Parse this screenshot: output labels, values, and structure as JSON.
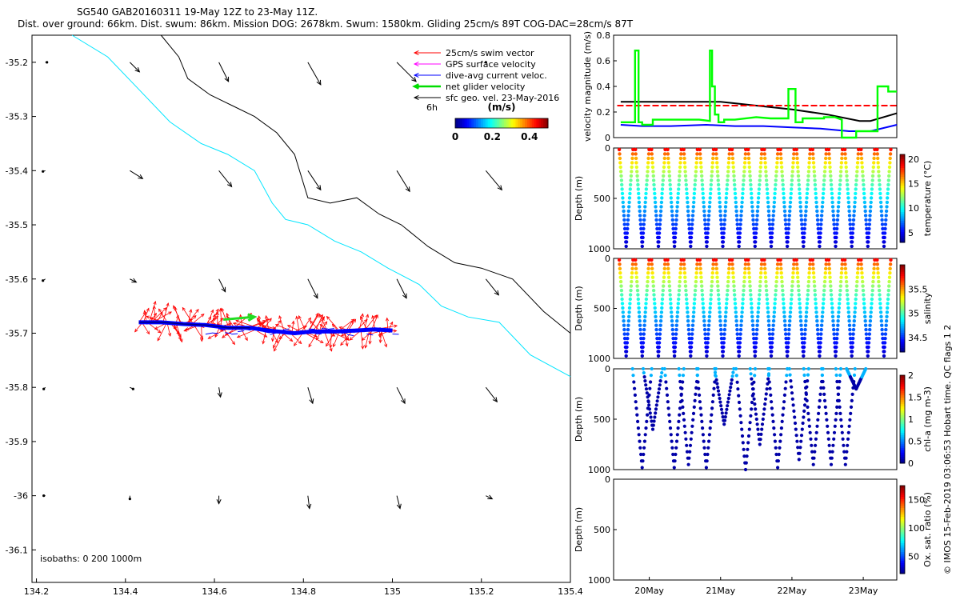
{
  "header": {
    "line1": "SG540 GAB20160311 19-May 12Z to 23-May 11Z.",
    "line2": "Dist. over ground: 66km. Dist. swum: 86km. Mission DOG: 2678km. Swum: 1580km. Gliding 25cm/s 89T COG-DAC=28cm/s 87T"
  },
  "credit": "© IMOS 15-Feb-2019 03:06:53 Hobart time. QC flags 1  2",
  "chart_data": [
    {
      "type": "map",
      "x_ticks": [
        "134.2",
        "134.4",
        "134.6",
        "134.8",
        "135",
        "135.2",
        "135.4"
      ],
      "y_ticks": [
        "-35.2",
        "-35.3",
        "-35.4",
        "-35.5",
        "-35.6",
        "-35.7",
        "-35.8",
        "-35.9",
        "-36",
        "-36.1"
      ],
      "xlim": [
        134.19,
        135.4
      ],
      "ylim": [
        -36.16,
        -35.15
      ],
      "legend": [
        {
          "label": "25cm/s swim vector",
          "color": "#ff0000"
        },
        {
          "label": "GPS surface velocity",
          "color": "#ff00ff"
        },
        {
          "label": "dive-avg current veloc.",
          "color": "#0000ff"
        },
        {
          "label": "net glider velocity",
          "color": "#00dd00"
        },
        {
          "label": "sfc geo. vel. 23-May-2016",
          "color": "#000000"
        }
      ],
      "legend_position": "top-right",
      "scale_label": "6h",
      "colorbar": {
        "title": "(m/s)",
        "ticks": [
          "0",
          "0.2",
          "0.4"
        ],
        "range": [
          0,
          0.5
        ]
      },
      "isobaths_label": "isobaths: 0   200  1000m",
      "isobath_200": [
        [
          134.28,
          -35.15
        ],
        [
          134.36,
          -35.19
        ],
        [
          134.43,
          -35.25
        ],
        [
          134.5,
          -35.31
        ],
        [
          134.57,
          -35.35
        ],
        [
          134.63,
          -35.37
        ],
        [
          134.69,
          -35.4
        ],
        [
          134.73,
          -35.46
        ],
        [
          134.76,
          -35.49
        ],
        [
          134.81,
          -35.5
        ],
        [
          134.87,
          -35.53
        ],
        [
          134.93,
          -35.55
        ],
        [
          134.99,
          -35.58
        ],
        [
          135.06,
          -35.61
        ],
        [
          135.11,
          -35.65
        ],
        [
          135.17,
          -35.67
        ],
        [
          135.24,
          -35.68
        ],
        [
          135.31,
          -35.74
        ],
        [
          135.4,
          -35.78
        ]
      ],
      "isobath_1000": [
        [
          134.48,
          -35.15
        ],
        [
          134.52,
          -35.19
        ],
        [
          134.54,
          -35.23
        ],
        [
          134.59,
          -35.26
        ],
        [
          134.64,
          -35.28
        ],
        [
          134.69,
          -35.3
        ],
        [
          134.74,
          -35.33
        ],
        [
          134.78,
          -35.37
        ],
        [
          134.81,
          -35.45
        ],
        [
          134.86,
          -35.46
        ],
        [
          134.92,
          -35.45
        ],
        [
          134.97,
          -35.48
        ],
        [
          135.02,
          -35.5
        ],
        [
          135.08,
          -35.54
        ],
        [
          135.14,
          -35.57
        ],
        [
          135.2,
          -35.58
        ],
        [
          135.27,
          -35.6
        ],
        [
          135.34,
          -35.66
        ],
        [
          135.4,
          -35.7
        ]
      ],
      "glider_track": [
        [
          134.43,
          -35.68
        ],
        [
          134.48,
          -35.68
        ],
        [
          134.53,
          -35.683
        ],
        [
          134.58,
          -35.685
        ],
        [
          134.63,
          -35.69
        ],
        [
          134.68,
          -35.69
        ],
        [
          134.72,
          -35.695
        ],
        [
          134.78,
          -35.7
        ],
        [
          134.82,
          -35.697
        ],
        [
          134.87,
          -35.697
        ],
        [
          134.92,
          -35.695
        ],
        [
          134.96,
          -35.693
        ],
        [
          135.0,
          -35.695
        ]
      ],
      "net_velocity": {
        "from": [
          134.62,
          -35.675
        ],
        "to": [
          134.69,
          -35.67
        ]
      },
      "geo_vectors": [
        {
          "lon": 134.22,
          "lat": -35.2,
          "u": 0.02,
          "v": 0
        },
        {
          "lon": 134.41,
          "lat": -35.2,
          "u": 0.12,
          "v": -0.12
        },
        {
          "lon": 134.61,
          "lat": -35.2,
          "u": 0.12,
          "v": -0.24
        },
        {
          "lon": 134.81,
          "lat": -35.2,
          "u": 0.16,
          "v": -0.28
        },
        {
          "lon": 135.01,
          "lat": -35.2,
          "u": 0.24,
          "v": -0.24
        },
        {
          "lon": 135.21,
          "lat": -35.2,
          "u": 0,
          "v": 0
        },
        {
          "lon": 134.22,
          "lat": -35.4,
          "u": -0.03,
          "v": -0.01
        },
        {
          "lon": 134.41,
          "lat": -35.4,
          "u": 0.16,
          "v": -0.1
        },
        {
          "lon": 134.61,
          "lat": -35.4,
          "u": 0.16,
          "v": -0.2
        },
        {
          "lon": 134.81,
          "lat": -35.4,
          "u": 0.16,
          "v": -0.24
        },
        {
          "lon": 135.01,
          "lat": -35.4,
          "u": 0.16,
          "v": -0.26
        },
        {
          "lon": 135.21,
          "lat": -35.4,
          "u": 0.2,
          "v": -0.24
        },
        {
          "lon": 134.22,
          "lat": -35.6,
          "u": -0.03,
          "v": -0.02
        },
        {
          "lon": 134.41,
          "lat": -35.6,
          "u": 0.08,
          "v": -0.04
        },
        {
          "lon": 134.61,
          "lat": -35.6,
          "u": 0.08,
          "v": -0.16
        },
        {
          "lon": 134.81,
          "lat": -35.6,
          "u": 0.12,
          "v": -0.24
        },
        {
          "lon": 135.01,
          "lat": -35.6,
          "u": 0.12,
          "v": -0.24
        },
        {
          "lon": 135.21,
          "lat": -35.6,
          "u": 0.16,
          "v": -0.2
        },
        {
          "lon": 134.22,
          "lat": -35.8,
          "u": -0.02,
          "v": -0.02
        },
        {
          "lon": 134.41,
          "lat": -35.8,
          "u": 0.04,
          "v": -0.02
        },
        {
          "lon": 134.61,
          "lat": -35.8,
          "u": 0.02,
          "v": -0.12
        },
        {
          "lon": 134.81,
          "lat": -35.8,
          "u": 0.06,
          "v": -0.2
        },
        {
          "lon": 135.01,
          "lat": -35.8,
          "u": 0.1,
          "v": -0.2
        },
        {
          "lon": 135.21,
          "lat": -35.8,
          "u": 0.14,
          "v": -0.18
        },
        {
          "lon": 134.22,
          "lat": -36.0,
          "u": -0.02,
          "v": 0
        },
        {
          "lon": 134.41,
          "lat": -36.0,
          "u": 0,
          "v": -0.04
        },
        {
          "lon": 134.61,
          "lat": -36.0,
          "u": 0,
          "v": -0.1
        },
        {
          "lon": 134.81,
          "lat": -36.0,
          "u": 0.02,
          "v": -0.16
        },
        {
          "lon": 135.01,
          "lat": -36.0,
          "u": 0.04,
          "v": -0.16
        },
        {
          "lon": 135.21,
          "lat": -36.0,
          "u": 0.08,
          "v": -0.04
        }
      ]
    },
    {
      "type": "line",
      "ylabel": "velocity magnitude (m/s)",
      "ylim": [
        0,
        0.8
      ],
      "y_ticks": [
        "0",
        "0.2",
        "0.4",
        "0.6",
        "0.8"
      ],
      "xlim": [
        19.5,
        23.47
      ],
      "series": [
        {
          "color": "#000000",
          "x": [
            19.6,
            20.5,
            21.0,
            21.5,
            22.0,
            22.5,
            22.95,
            23.1,
            23.47
          ],
          "y": [
            0.28,
            0.28,
            0.28,
            0.25,
            0.22,
            0.18,
            0.13,
            0.13,
            0.19
          ]
        },
        {
          "color": "#ff0000",
          "dashed": true,
          "x": [
            19.55,
            23.47
          ],
          "y": [
            0.25,
            0.25
          ]
        },
        {
          "color": "#0000ff",
          "x": [
            19.6,
            19.9,
            20.3,
            20.8,
            21.2,
            21.6,
            22.0,
            22.4,
            22.8,
            23.1,
            23.47
          ],
          "y": [
            0.1,
            0.09,
            0.09,
            0.1,
            0.09,
            0.09,
            0.08,
            0.07,
            0.05,
            0.05,
            0.1
          ]
        },
        {
          "color": "#00ff00",
          "x": [
            19.6,
            19.8,
            19.8,
            19.85,
            19.85,
            19.9,
            19.9,
            20.05,
            20.05,
            20.4,
            20.7,
            20.85,
            20.85,
            20.88,
            20.88,
            20.92,
            20.92,
            20.97,
            20.97,
            21.05,
            21.05,
            21.2,
            21.5,
            21.7,
            21.95,
            21.95,
            22.05,
            22.05,
            22.15,
            22.15,
            22.4,
            22.45,
            22.45,
            22.6,
            22.7,
            22.7,
            22.9,
            22.9,
            23.2,
            23.2,
            23.35,
            23.35,
            23.47
          ],
          "y": [
            0.12,
            0.12,
            0.68,
            0.68,
            0.12,
            0.12,
            0.1,
            0.1,
            0.14,
            0.14,
            0.14,
            0.13,
            0.68,
            0.68,
            0.4,
            0.4,
            0.18,
            0.18,
            0.12,
            0.12,
            0.14,
            0.14,
            0.16,
            0.15,
            0.15,
            0.38,
            0.38,
            0.12,
            0.12,
            0.15,
            0.15,
            0.15,
            0.16,
            0.16,
            0.14,
            0,
            0,
            0.05,
            0.05,
            0.4,
            0.4,
            0.36,
            0.36
          ]
        }
      ]
    },
    {
      "type": "scatter",
      "variable": "temperature",
      "ylabel": "Depth (m)",
      "ylim": [
        1000,
        0
      ],
      "y_ticks": [
        "0",
        "500",
        "1000"
      ],
      "colorbar_label": "temperature (°C)",
      "colorbar_ticks": [
        "5",
        "10",
        "15",
        "20"
      ],
      "crange": [
        3,
        21
      ],
      "cycles": 17,
      "colormap": "jet"
    },
    {
      "type": "scatter",
      "variable": "salinity",
      "ylabel": "Depth (m)",
      "ylim": [
        1000,
        0
      ],
      "y_ticks": [
        "0",
        "500",
        "1000"
      ],
      "colorbar_label": "salinity",
      "colorbar_ticks": [
        "34.5",
        "35",
        "35.5"
      ],
      "crange": [
        34.2,
        36
      ],
      "cycles": 17,
      "colormap": "jet"
    },
    {
      "type": "scatter",
      "variable": "chl-a",
      "ylabel": "Depth (m)",
      "ylim": [
        1000,
        0
      ],
      "y_ticks": [
        "0",
        "500",
        "1000"
      ],
      "colorbar_label": "chl-a (mg m-3)",
      "colorbar_ticks": [
        "0",
        "0.5",
        "1",
        "1.5",
        "2"
      ],
      "crange": [
        0,
        2
      ],
      "colormap": "jet"
    },
    {
      "type": "scatter",
      "variable": "oxygen",
      "ylabel": "Depth (m)",
      "ylim": [
        1000,
        0
      ],
      "y_ticks": [
        "0",
        "500",
        "1000"
      ],
      "colorbar_label": "Ox. sat. ratio (%)",
      "colorbar_ticks": [
        "50",
        "100",
        "150"
      ],
      "crange": [
        20,
        175
      ],
      "colormap": "jet",
      "x_ticks": [
        "20May",
        "21May",
        "22May",
        "23May"
      ]
    }
  ]
}
